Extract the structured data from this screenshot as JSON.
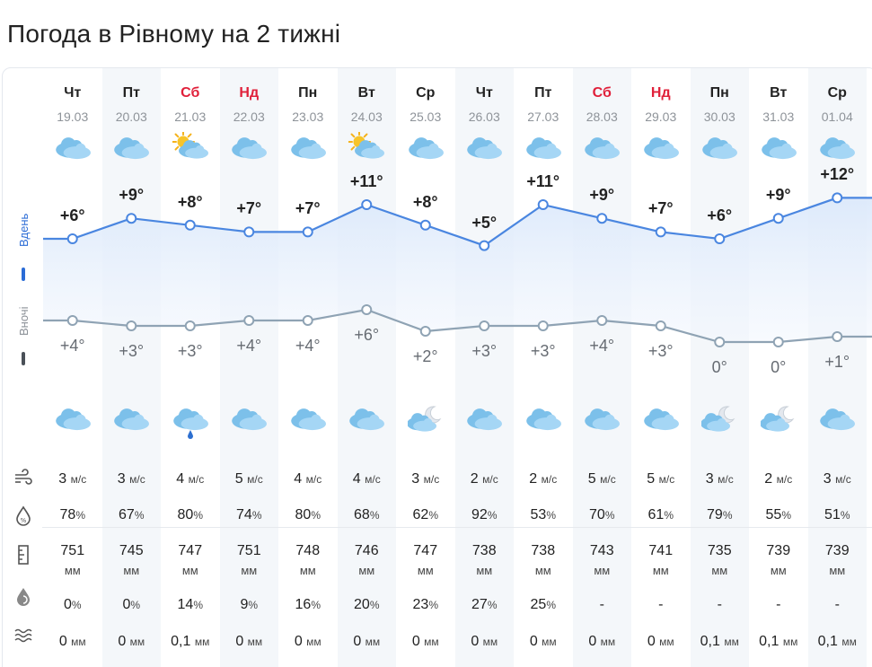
{
  "title": "Погода в Рівному на 2 тижні",
  "legend": {
    "day": "Вдень",
    "night": "Вночі"
  },
  "colors": {
    "day_line": "#4a86e0",
    "night_line": "#8fa3b4",
    "weekend": "#e0203a",
    "shade": "#f4f7fa"
  },
  "days": [
    {
      "name": "Чт",
      "date": "19.03",
      "weekend": false,
      "day_icon": "cloud-sun-icon",
      "night_icon": "cloud-icon",
      "tmax": "+6°",
      "tmin": "+4°",
      "tmax_v": 6,
      "tmin_v": 4,
      "wind": "3",
      "wind_u": "м/с",
      "hum": "78",
      "press": "751",
      "press_u": "мм",
      "precip_p": "0",
      "precip_p_u": "%",
      "precip": "0",
      "precip_u": "мм"
    },
    {
      "name": "Пт",
      "date": "20.03",
      "weekend": false,
      "day_icon": "cloud-sun-icon",
      "night_icon": "cloud-icon",
      "tmax": "+9°",
      "tmin": "+3°",
      "tmax_v": 9,
      "tmin_v": 3,
      "wind": "3",
      "wind_u": "м/с",
      "hum": "67",
      "press": "745",
      "press_u": "мм",
      "precip_p": "0",
      "precip_p_u": "%",
      "precip": "0",
      "precip_u": "мм"
    },
    {
      "name": "Сб",
      "date": "21.03",
      "weekend": true,
      "day_icon": "sun-cloud-icon",
      "night_icon": "cloud-rain-icon",
      "tmax": "+8°",
      "tmin": "+3°",
      "tmax_v": 8,
      "tmin_v": 3,
      "wind": "4",
      "wind_u": "м/с",
      "hum": "80",
      "press": "747",
      "press_u": "мм",
      "precip_p": "14",
      "precip_p_u": "%",
      "precip": "0,1",
      "precip_u": "мм"
    },
    {
      "name": "Нд",
      "date": "22.03",
      "weekend": true,
      "day_icon": "cloud-sun-icon",
      "night_icon": "cloud-icon",
      "tmax": "+7°",
      "tmin": "+4°",
      "tmax_v": 7,
      "tmin_v": 4,
      "wind": "5",
      "wind_u": "м/с",
      "hum": "74",
      "press": "751",
      "press_u": "мм",
      "precip_p": "9",
      "precip_p_u": "%",
      "precip": "0",
      "precip_u": "мм"
    },
    {
      "name": "Пн",
      "date": "23.03",
      "weekend": false,
      "day_icon": "cloud-sun-icon",
      "night_icon": "cloud-icon",
      "tmax": "+7°",
      "tmin": "+4°",
      "tmax_v": 7,
      "tmin_v": 4,
      "wind": "4",
      "wind_u": "м/с",
      "hum": "80",
      "press": "748",
      "press_u": "мм",
      "precip_p": "16",
      "precip_p_u": "%",
      "precip": "0",
      "precip_u": "мм"
    },
    {
      "name": "Вт",
      "date": "24.03",
      "weekend": false,
      "day_icon": "sun-cloud-icon",
      "night_icon": "cloud-icon",
      "tmax": "+11°",
      "tmin": "+6°",
      "tmax_v": 11,
      "tmin_v": 6,
      "wind": "4",
      "wind_u": "м/с",
      "hum": "68",
      "press": "746",
      "press_u": "мм",
      "precip_p": "20",
      "precip_p_u": "%",
      "precip": "0",
      "precip_u": "мм"
    },
    {
      "name": "Ср",
      "date": "25.03",
      "weekend": false,
      "day_icon": "cloud-sun-icon",
      "night_icon": "cloud-moon-icon",
      "tmax": "+8°",
      "tmin": "+2°",
      "tmax_v": 8,
      "tmin_v": 2,
      "wind": "3",
      "wind_u": "м/с",
      "hum": "62",
      "press": "747",
      "press_u": "мм",
      "precip_p": "23",
      "precip_p_u": "%",
      "precip": "0",
      "precip_u": "мм"
    },
    {
      "name": "Чт",
      "date": "26.03",
      "weekend": false,
      "day_icon": "cloud-sun-icon",
      "night_icon": "cloud-icon",
      "tmax": "+5°",
      "tmin": "+3°",
      "tmax_v": 5,
      "tmin_v": 3,
      "wind": "2",
      "wind_u": "м/с",
      "hum": "92",
      "press": "738",
      "press_u": "мм",
      "precip_p": "27",
      "precip_p_u": "%",
      "precip": "0",
      "precip_u": "мм"
    },
    {
      "name": "Пт",
      "date": "27.03",
      "weekend": false,
      "day_icon": "cloud-sun-icon",
      "night_icon": "cloud-icon",
      "tmax": "+11°",
      "tmin": "+3°",
      "tmax_v": 11,
      "tmin_v": 3,
      "wind": "2",
      "wind_u": "м/с",
      "hum": "53",
      "press": "738",
      "press_u": "мм",
      "precip_p": "25",
      "precip_p_u": "%",
      "precip": "0",
      "precip_u": "мм"
    },
    {
      "name": "Сб",
      "date": "28.03",
      "weekend": true,
      "day_icon": "cloud-sun-icon",
      "night_icon": "cloud-icon",
      "tmax": "+9°",
      "tmin": "+4°",
      "tmax_v": 9,
      "tmin_v": 4,
      "wind": "5",
      "wind_u": "м/с",
      "hum": "70",
      "press": "743",
      "press_u": "мм",
      "precip_p": "-",
      "precip_p_u": "",
      "precip": "0",
      "precip_u": "мм"
    },
    {
      "name": "Нд",
      "date": "29.03",
      "weekend": true,
      "day_icon": "cloud-sun-icon",
      "night_icon": "cloud-icon",
      "tmax": "+7°",
      "tmin": "+3°",
      "tmax_v": 7,
      "tmin_v": 3,
      "wind": "5",
      "wind_u": "м/с",
      "hum": "61",
      "press": "741",
      "press_u": "мм",
      "precip_p": "-",
      "precip_p_u": "",
      "precip": "0",
      "precip_u": "мм"
    },
    {
      "name": "Пн",
      "date": "30.03",
      "weekend": false,
      "day_icon": "cloud-sun-icon",
      "night_icon": "cloud-moon-icon",
      "tmax": "+6°",
      "tmin": "0°",
      "tmax_v": 6,
      "tmin_v": 0,
      "wind": "3",
      "wind_u": "м/с",
      "hum": "79",
      "press": "735",
      "press_u": "мм",
      "precip_p": "-",
      "precip_p_u": "",
      "precip": "0,1",
      "precip_u": "мм"
    },
    {
      "name": "Вт",
      "date": "31.03",
      "weekend": false,
      "day_icon": "cloud-sun-icon",
      "night_icon": "cloud-moon-icon",
      "tmax": "+9°",
      "tmin": "0°",
      "tmax_v": 9,
      "tmin_v": 0,
      "wind": "2",
      "wind_u": "м/с",
      "hum": "55",
      "press": "739",
      "press_u": "мм",
      "precip_p": "-",
      "precip_p_u": "",
      "precip": "0,1",
      "precip_u": "мм"
    },
    {
      "name": "Ср",
      "date": "01.04",
      "weekend": false,
      "day_icon": "cloud-sun-icon",
      "night_icon": "cloud-icon",
      "tmax": "+12°",
      "tmin": "+1°",
      "tmax_v": 12,
      "tmin_v": 1,
      "wind": "3",
      "wind_u": "м/с",
      "hum": "51",
      "press": "739",
      "press_u": "мм",
      "precip_p": "-",
      "precip_p_u": "",
      "precip": "0,1",
      "precip_u": "мм"
    }
  ],
  "row_icons": [
    "wind-icon",
    "humidity-icon",
    "pressure-icon",
    "precip-probability-icon",
    "precipitation-icon"
  ],
  "hum_unit": "%"
}
